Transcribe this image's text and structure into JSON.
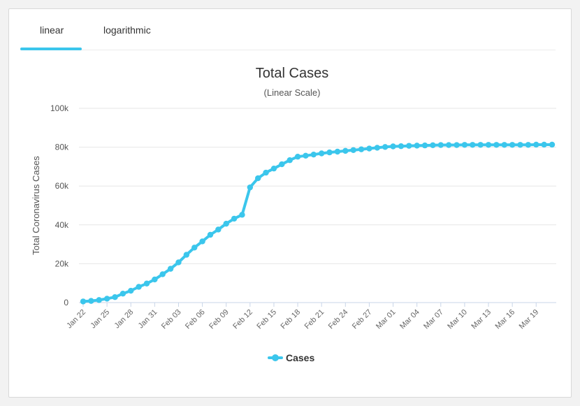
{
  "tabs": {
    "items": [
      {
        "label": "linear",
        "active": true
      },
      {
        "label": "logarithmic",
        "active": false
      }
    ]
  },
  "colors": {
    "series": "#3bc6ec",
    "accent": "#3bc6ec"
  },
  "chart_data": {
    "type": "line",
    "title": "Total Cases",
    "subtitle": "(Linear Scale)",
    "xlabel": "",
    "ylabel": "Total Coronavirus Cases",
    "ylim": [
      0,
      100000
    ],
    "y_ticks": [
      0,
      20000,
      40000,
      60000,
      80000,
      100000
    ],
    "y_tick_labels": [
      "0",
      "20k",
      "40k",
      "60k",
      "80k",
      "100k"
    ],
    "x": [
      "Jan 22",
      "Jan 23",
      "Jan 24",
      "Jan 25",
      "Jan 26",
      "Jan 27",
      "Jan 28",
      "Jan 29",
      "Jan 30",
      "Jan 31",
      "Feb 01",
      "Feb 02",
      "Feb 03",
      "Feb 04",
      "Feb 05",
      "Feb 06",
      "Feb 07",
      "Feb 08",
      "Feb 09",
      "Feb 10",
      "Feb 11",
      "Feb 12",
      "Feb 13",
      "Feb 14",
      "Feb 15",
      "Feb 16",
      "Feb 17",
      "Feb 18",
      "Feb 19",
      "Feb 20",
      "Feb 21",
      "Feb 22",
      "Feb 23",
      "Feb 24",
      "Feb 25",
      "Feb 26",
      "Feb 27",
      "Feb 28",
      "Feb 29",
      "Mar 01",
      "Mar 02",
      "Mar 03",
      "Mar 04",
      "Mar 05",
      "Mar 06",
      "Mar 07",
      "Mar 08",
      "Mar 09",
      "Mar 10",
      "Mar 11",
      "Mar 12",
      "Mar 13",
      "Mar 14",
      "Mar 15",
      "Mar 16",
      "Mar 17",
      "Mar 18",
      "Mar 19",
      "Mar 20",
      "Mar 21"
    ],
    "x_tick_labels": [
      "Jan 22",
      "Jan 25",
      "Jan 28",
      "Jan 31",
      "Feb 03",
      "Feb 06",
      "Feb 09",
      "Feb 12",
      "Feb 15",
      "Feb 18",
      "Feb 21",
      "Feb 24",
      "Feb 27",
      "Mar 01",
      "Mar 04",
      "Mar 07",
      "Mar 10",
      "Mar 13",
      "Mar 16",
      "Mar 19"
    ],
    "series": [
      {
        "name": "Cases",
        "values": [
          580,
          850,
          1300,
          2000,
          2800,
          4600,
          6100,
          8100,
          9800,
          11900,
          14600,
          17400,
          20700,
          24600,
          28300,
          31500,
          34900,
          37600,
          40600,
          43200,
          45200,
          59300,
          64000,
          66900,
          69000,
          71200,
          73300,
          75100,
          75600,
          76200,
          76800,
          77300,
          77700,
          78100,
          78500,
          78900,
          79300,
          79700,
          80100,
          80400,
          80500,
          80700,
          80800,
          80900,
          81000,
          81100,
          81100,
          81100,
          81200,
          81200,
          81200,
          81200,
          81200,
          81200,
          81200,
          81200,
          81200,
          81300,
          81300,
          81300
        ]
      }
    ],
    "grid": true,
    "legend": "bottom"
  }
}
